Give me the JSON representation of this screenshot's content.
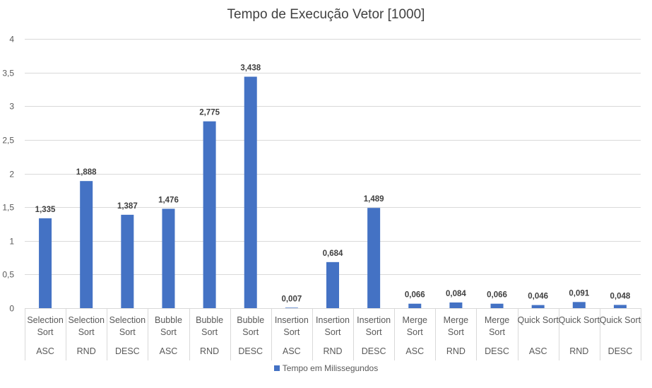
{
  "chart_data": {
    "type": "bar",
    "title": "Tempo de Execução Vetor [1000]",
    "categories": [
      {
        "group": [
          "Selection",
          "Sort"
        ],
        "sub": "ASC"
      },
      {
        "group": [
          "Selection",
          "Sort"
        ],
        "sub": "RND"
      },
      {
        "group": [
          "Selection",
          "Sort"
        ],
        "sub": "DESC"
      },
      {
        "group": [
          "Bubble",
          "Sort"
        ],
        "sub": "ASC"
      },
      {
        "group": [
          "Bubble",
          "Sort"
        ],
        "sub": "RND"
      },
      {
        "group": [
          "Bubble",
          "Sort"
        ],
        "sub": "DESC"
      },
      {
        "group": [
          "Insertion",
          "Sort"
        ],
        "sub": "ASC"
      },
      {
        "group": [
          "Insertion",
          "Sort"
        ],
        "sub": "RND"
      },
      {
        "group": [
          "Insertion",
          "Sort"
        ],
        "sub": "DESC"
      },
      {
        "group": [
          "Merge",
          "Sort"
        ],
        "sub": "ASC"
      },
      {
        "group": [
          "Merge",
          "Sort"
        ],
        "sub": "RND"
      },
      {
        "group": [
          "Merge",
          "Sort"
        ],
        "sub": "DESC"
      },
      {
        "group": [
          "Quick Sort"
        ],
        "sub": "ASC"
      },
      {
        "group": [
          "Quick Sort"
        ],
        "sub": "RND"
      },
      {
        "group": [
          "Quick Sort"
        ],
        "sub": "DESC"
      }
    ],
    "series": [
      {
        "name": "Tempo em Milissegundos",
        "color": "#4472C4",
        "values": [
          1.335,
          1.888,
          1.387,
          1.476,
          2.775,
          3.438,
          0.007,
          0.684,
          1.489,
          0.066,
          0.084,
          0.066,
          0.046,
          0.091,
          0.048
        ],
        "labels": [
          "1,335",
          "1,888",
          "1,387",
          "1,476",
          "2,775",
          "3,438",
          "0,007",
          "0,684",
          "1,489",
          "0,066",
          "0,084",
          "0,066",
          "0,046",
          "0,091",
          "0,048"
        ]
      }
    ],
    "ylim": [
      0,
      4
    ],
    "yticks": [
      "0",
      "0,5",
      "1",
      "1,5",
      "2",
      "2,5",
      "3",
      "3,5",
      "4"
    ],
    "grid": true,
    "legend_position": "bottom"
  }
}
